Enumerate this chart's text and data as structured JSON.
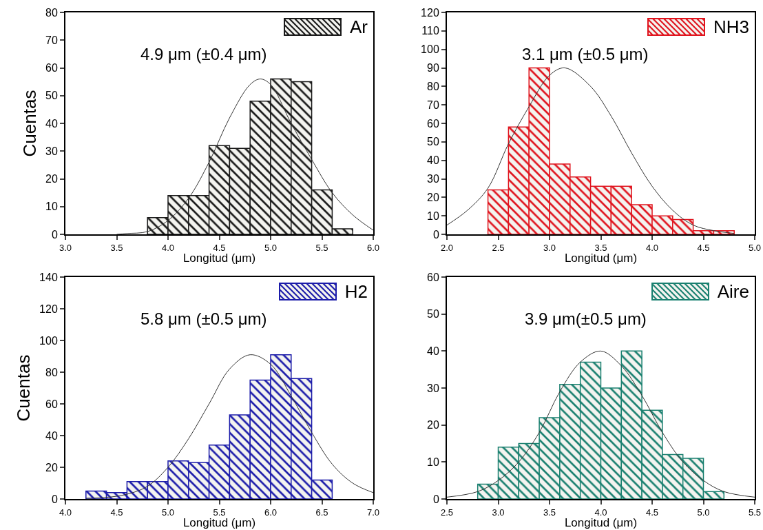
{
  "chart_data": [
    {
      "type": "histogram",
      "xlabel": "Longitud (μm)",
      "ylabel": "Cuentas",
      "annotations": [
        "4.9 μm (±0.4 μm)"
      ],
      "legend": "top right",
      "bins": [
        3.8,
        4.0,
        4.2,
        4.4,
        4.6,
        4.8,
        5.0,
        5.2,
        5.4,
        5.6,
        5.8
      ],
      "series": [
        {
          "name": "Ar",
          "color": "#1a1a1a",
          "values": [
            6,
            14,
            14,
            32,
            31,
            48,
            56,
            55,
            16,
            2
          ]
        },
        {
          "type": "line",
          "color": "#333333",
          "x": [
            3.5,
            3.6,
            3.8,
            4.0,
            4.2,
            4.4,
            4.6,
            4.8,
            4.9,
            5.0,
            5.2,
            5.4,
            5.6,
            5.8,
            6.0
          ],
          "values": [
            0,
            0.3,
            1,
            5,
            13,
            26,
            42,
            54,
            56,
            54,
            40,
            27,
            15,
            7,
            1.5
          ]
        }
      ],
      "xlim": [
        3,
        6
      ],
      "xticks": [
        {
          "value": 3,
          "label": "3.0"
        },
        3.5,
        {
          "value": 4,
          "label": "4.0"
        },
        4.5,
        {
          "value": 5,
          "label": "5.0"
        },
        5.5,
        {
          "value": 6,
          "label": "6.0"
        }
      ],
      "ylim": [
        0,
        80
      ],
      "yticks": [
        0,
        10,
        20,
        30,
        40,
        50,
        60,
        70,
        80
      ],
      "grid": false
    },
    {
      "type": "histogram",
      "xlabel": "Longitud (μm)",
      "annotations": [
        "3.1 μm (±0.5 μm)"
      ],
      "legend": "top right",
      "bins": [
        2.4,
        2.6,
        2.8,
        3.0,
        3.2,
        3.4,
        3.6,
        3.8,
        4.0,
        4.2,
        4.4,
        4.6,
        4.8
      ],
      "series": [
        {
          "name": "NH3",
          "color": "#e0141e",
          "values": [
            24,
            58,
            90,
            38,
            31,
            26,
            26,
            16,
            10,
            8,
            2,
            2
          ]
        },
        {
          "type": "line",
          "color": "#333333",
          "x": [
            2.0,
            2.2,
            2.4,
            2.6,
            2.8,
            3.0,
            3.15,
            3.4,
            3.6,
            3.8,
            4.0,
            4.2,
            4.4,
            4.6,
            4.8
          ],
          "values": [
            5,
            13,
            25,
            49,
            69,
            86,
            90,
            80,
            64,
            44,
            26,
            13,
            5,
            2,
            0.5
          ]
        }
      ],
      "xlim": [
        2,
        5
      ],
      "xticks": [
        {
          "value": 2,
          "label": "2.0"
        },
        2.5,
        {
          "value": 3,
          "label": "3.0"
        },
        3.5,
        {
          "value": 4,
          "label": "4.0"
        },
        4.5,
        {
          "value": 5,
          "label": "5.0"
        }
      ],
      "ylim": [
        0,
        120
      ],
      "yticks": [
        0,
        10,
        20,
        30,
        40,
        50,
        60,
        70,
        80,
        90,
        100,
        110,
        120
      ],
      "grid": false
    },
    {
      "type": "histogram",
      "xlabel": "Longitud (μm)",
      "ylabel": "Cuentas",
      "annotations": [
        "5.8 μm (±0.5 μm)"
      ],
      "legend": "top right",
      "bins": [
        4.2,
        4.4,
        4.6,
        4.8,
        5.0,
        5.2,
        5.4,
        5.6,
        5.8,
        6.0,
        6.2,
        6.4,
        6.6
      ],
      "series": [
        {
          "name": "H2",
          "color": "#1c1caa",
          "values": [
            5,
            4,
            11,
            11,
            24,
            23,
            34,
            53,
            75,
            91,
            76,
            12
          ]
        },
        {
          "type": "line",
          "color": "#333333",
          "x": [
            4.2,
            4.4,
            4.6,
            4.8,
            5.0,
            5.2,
            5.4,
            5.6,
            5.8,
            6.0,
            6.2,
            6.4,
            6.6,
            6.8,
            7.0
          ],
          "values": [
            0.5,
            1,
            3,
            8,
            20,
            38,
            60,
            82,
            91,
            85,
            65,
            42,
            22,
            10,
            4
          ]
        }
      ],
      "xlim": [
        4,
        7
      ],
      "xticks": [
        {
          "value": 4,
          "label": "4.0"
        },
        4.5,
        {
          "value": 5,
          "label": "5.0"
        },
        5.5,
        {
          "value": 6,
          "label": "6.0"
        },
        6.5,
        {
          "value": 7,
          "label": "7.0"
        }
      ],
      "ylim": [
        0,
        140
      ],
      "yticks": [
        0,
        20,
        40,
        60,
        80,
        100,
        120,
        140
      ],
      "grid": false
    },
    {
      "type": "histogram",
      "xlabel": "Longitud (μm)",
      "annotations": [
        "3.9 μm(±0.5 μm)"
      ],
      "legend": "top right",
      "bins": [
        2.8,
        3.0,
        3.2,
        3.4,
        3.6,
        3.8,
        4.0,
        4.2,
        4.4,
        4.6,
        4.8,
        5.0,
        5.2
      ],
      "series": [
        {
          "name": "Aire",
          "color": "#1a8070",
          "values": [
            4,
            14,
            15,
            22,
            31,
            37,
            30,
            40,
            24,
            12,
            11,
            2
          ]
        },
        {
          "type": "line",
          "color": "#333333",
          "x": [
            2.5,
            2.8,
            3.0,
            3.2,
            3.4,
            3.6,
            3.8,
            4.0,
            4.2,
            4.4,
            4.6,
            4.8,
            5.0,
            5.2,
            5.5
          ],
          "values": [
            0.5,
            2,
            5,
            10,
            18,
            29,
            37,
            40,
            36,
            28,
            18,
            10,
            5,
            2,
            0.5
          ]
        }
      ],
      "xlim": [
        2.5,
        5.5
      ],
      "xticks": [
        2.5,
        {
          "value": 3,
          "label": "3.0"
        },
        3.5,
        {
          "value": 4,
          "label": "4.0"
        },
        4.5,
        {
          "value": 5,
          "label": "5.0"
        },
        5.5
      ],
      "ylim": [
        0,
        60
      ],
      "yticks": [
        0,
        10,
        20,
        30,
        40,
        50,
        60
      ],
      "grid": false
    }
  ]
}
